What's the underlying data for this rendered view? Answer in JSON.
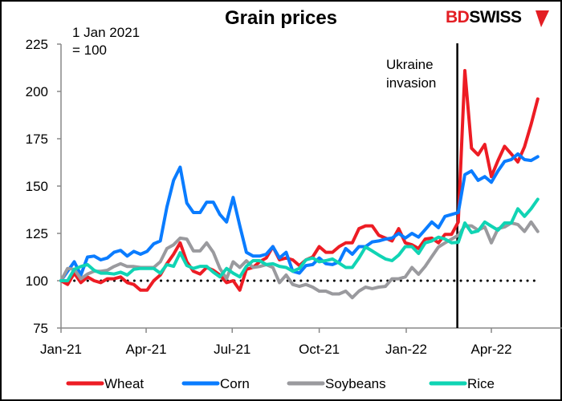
{
  "chart_data": {
    "type": "line",
    "title": "Grain prices",
    "logo": {
      "part1": "BD",
      "part2": "SWISS",
      "part1_color": "#e31e24",
      "part2_color": "#000000"
    },
    "note_line1": "1 Jan 2021",
    "note_line2": "= 100",
    "x_start": "2021-01-01",
    "frequency": "weekly",
    "x_ticks": [
      {
        "label": "Jan-21",
        "date": "2021-01-01"
      },
      {
        "label": "Apr-21",
        "date": "2021-04-01"
      },
      {
        "label": "Jul-21",
        "date": "2021-07-01"
      },
      {
        "label": "Oct-21",
        "date": "2021-10-01"
      },
      {
        "label": "Jan-22",
        "date": "2022-01-01"
      },
      {
        "label": "Apr-22",
        "date": "2022-04-01"
      }
    ],
    "ylim": [
      75,
      225
    ],
    "y_ticks": [
      75,
      100,
      125,
      150,
      175,
      200,
      225
    ],
    "grid": false,
    "reference_line": {
      "value": 100,
      "style": "dotted"
    },
    "event": {
      "date": "2022-02-24",
      "label_line1": "Ukraine",
      "label_line2": "invasion"
    },
    "legend_position": "bottom",
    "series": [
      {
        "name": "Wheat",
        "color": "#ed1c24",
        "values": [
          100,
          98,
          104,
          99,
          102,
          100,
          99,
          101,
          101,
          102,
          99,
          98,
          95,
          95,
          100,
          103,
          109,
          114,
          120,
          110,
          105,
          103.5,
          107,
          105.5,
          103,
          99,
          100,
          95,
          106,
          107,
          110,
          112,
          118,
          111,
          112,
          111,
          108,
          111,
          112.5,
          118,
          115,
          115,
          118,
          120,
          120,
          127.5,
          129,
          129,
          124,
          122.5,
          121,
          127.5,
          120,
          119,
          117,
          122,
          122.5,
          120,
          124.5,
          124.5,
          131,
          211,
          170,
          166.5,
          172,
          155,
          163.5,
          171,
          167,
          162.7,
          170.7,
          182.6,
          196
        ]
      },
      {
        "name": "Corn",
        "color": "#0a7cff",
        "values": [
          100,
          105,
          110,
          103,
          112.5,
          113,
          111,
          112,
          115,
          116,
          113,
          115.5,
          114,
          115.5,
          119.5,
          121,
          139,
          153,
          160,
          141,
          136,
          136,
          141.5,
          141.5,
          135,
          131,
          144,
          129,
          115,
          113,
          113,
          114,
          118,
          112,
          115,
          105,
          104,
          108,
          108.5,
          112,
          109,
          108.5,
          110,
          117,
          114,
          118,
          118,
          120.5,
          121,
          122,
          122.5,
          125,
          122.5,
          125,
          123,
          127,
          131,
          128,
          134,
          135,
          136,
          156,
          158,
          153,
          155,
          152,
          158,
          163,
          164,
          167,
          164,
          163.5,
          165.5
        ]
      },
      {
        "name": "Soybeans",
        "color": "#9a9a9e",
        "values": [
          100,
          106.5,
          106,
          101,
          103.5,
          105,
          105,
          105.5,
          107.5,
          109,
          107.5,
          107.5,
          107,
          107,
          107,
          110,
          117,
          119,
          122.5,
          122,
          115.7,
          115.7,
          120,
          115,
          106.5,
          101,
          110,
          107,
          110.5,
          107,
          107.5,
          108.5,
          107,
          99,
          103,
          98,
          97,
          98,
          96.6,
          94.5,
          94.5,
          93,
          93,
          94.5,
          91,
          94.5,
          96.6,
          95.8,
          96.6,
          97,
          101,
          101,
          102,
          107,
          103.4,
          107.6,
          112.7,
          117.8,
          120,
          122,
          124,
          129,
          129,
          126.7,
          128.4,
          120,
          127.5,
          128.4,
          130.5,
          129.7,
          126,
          131,
          126
        ]
      },
      {
        "name": "Rice",
        "color": "#10d4b4",
        "values": [
          100,
          100,
          106,
          107.5,
          108.5,
          105.5,
          104,
          104,
          103.5,
          104.5,
          103,
          106,
          106.5,
          106.5,
          106.5,
          104,
          108.5,
          107.6,
          114.8,
          108,
          106.5,
          107.6,
          107.6,
          104.5,
          102,
          106.5,
          104,
          102,
          107.6,
          110.6,
          110.6,
          108.5,
          109,
          107.6,
          107,
          105,
          106.5,
          111,
          112,
          110,
          110.6,
          111.5,
          109.3,
          107,
          107,
          112,
          117.8,
          115.7,
          113.5,
          111.5,
          110.6,
          113.5,
          118,
          118,
          114.4,
          120,
          121,
          123,
          122,
          120,
          120.3,
          130.5,
          125.4,
          126.3,
          131,
          128.8,
          126.7,
          130.5,
          130.5,
          138,
          134,
          138,
          143
        ]
      }
    ]
  }
}
